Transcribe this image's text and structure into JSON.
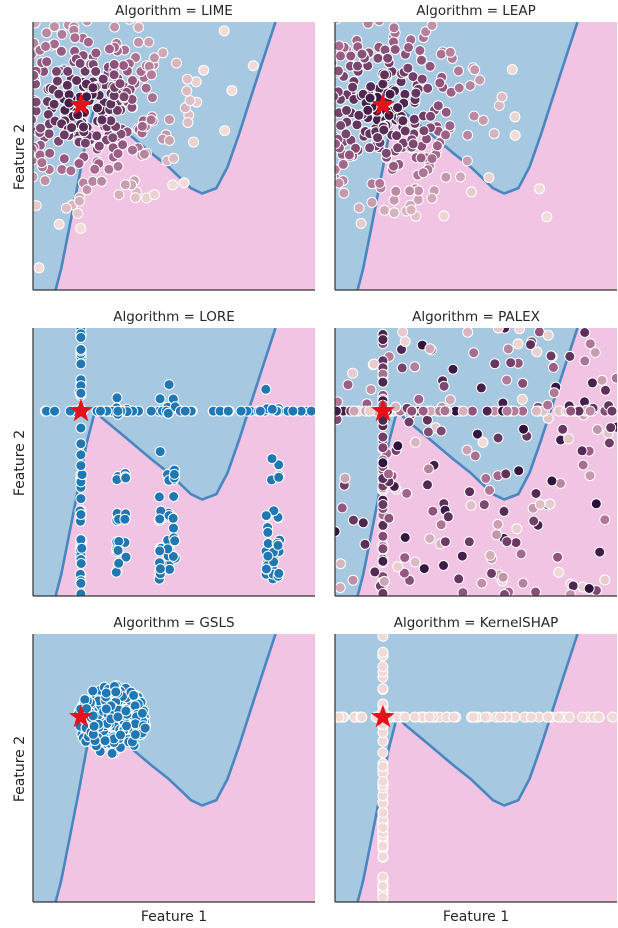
{
  "figure": {
    "xlabel": "Feature 1",
    "ylabel": "Feature 2",
    "colors": {
      "region_a": "#a6c8e0",
      "region_b": "#f2c4e4",
      "boundary": "#4a86bf",
      "star": "#e8101a",
      "blue_point": "#1f77b4",
      "point_stroke": "#ffffff"
    }
  },
  "chart_data": [
    {
      "type": "scatter",
      "title": "Algorithm = LIME",
      "xlim": [
        0,
        1
      ],
      "ylim": [
        0,
        1
      ],
      "sampling": "gaussian",
      "spread": 0.2,
      "n": 350,
      "color_scale": "rdpu-dark",
      "anchor": {
        "x": 0.17,
        "y": 0.69
      },
      "grid": false
    },
    {
      "type": "scatter",
      "title": "Algorithm = LEAP",
      "xlim": [
        0,
        1
      ],
      "ylim": [
        0,
        1
      ],
      "sampling": "gaussian",
      "spread": 0.22,
      "n": 300,
      "color_scale": "rdpu-dark",
      "anchor": {
        "x": 0.17,
        "y": 0.69
      },
      "grid": false
    },
    {
      "type": "scatter",
      "title": "Algorithm = LORE",
      "xlim": [
        0,
        1
      ],
      "ylim": [
        0,
        1
      ],
      "sampling": "grid-cross",
      "n": 220,
      "color_scale": "single-blue",
      "anchor": {
        "x": 0.17,
        "y": 0.69
      },
      "grid": false
    },
    {
      "type": "scatter",
      "title": "Algorithm = PALEX",
      "xlim": [
        0,
        1
      ],
      "ylim": [
        0,
        1
      ],
      "sampling": "cross-plus-uniform",
      "n": 330,
      "color_scale": "rdpu-dark",
      "anchor": {
        "x": 0.17,
        "y": 0.69
      },
      "grid": false
    },
    {
      "type": "scatter",
      "title": "Algorithm = GSLS",
      "xlim": [
        0,
        1
      ],
      "ylim": [
        0,
        1
      ],
      "sampling": "disk",
      "radius": 0.13,
      "n": 260,
      "color_scale": "single-blue",
      "anchor": {
        "x": 0.17,
        "y": 0.69
      },
      "grid": false
    },
    {
      "type": "scatter",
      "title": "Algorithm = KernelSHAP",
      "xlim": [
        0,
        1
      ],
      "ylim": [
        0,
        1
      ],
      "sampling": "cross",
      "n": 140,
      "color_scale": "pale",
      "anchor": {
        "x": 0.17,
        "y": 0.69
      },
      "grid": false
    }
  ]
}
